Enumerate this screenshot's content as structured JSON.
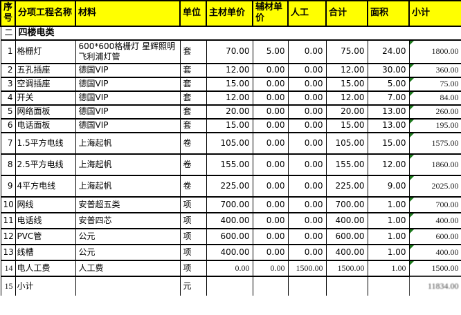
{
  "table": {
    "columns": [
      {
        "key": "no",
        "label": "序号"
      },
      {
        "key": "name",
        "label": "分项工程名称"
      },
      {
        "key": "material",
        "label": "材料"
      },
      {
        "key": "unit",
        "label": "单位"
      },
      {
        "key": "main",
        "label": "主材单价"
      },
      {
        "key": "aux",
        "label": "辅材单价"
      },
      {
        "key": "labor",
        "label": "人工"
      },
      {
        "key": "total",
        "label": "合计"
      },
      {
        "key": "area",
        "label": "面积"
      },
      {
        "key": "subtotal",
        "label": "小计"
      }
    ],
    "section": {
      "no": "二",
      "title": "四楼电类"
    },
    "rows": [
      {
        "no": "1",
        "name": "格栅灯",
        "material": "600*600格栅灯 星辉照明 飞利浦灯管",
        "unit": "套",
        "main": "70.00",
        "aux": "5.00",
        "labor": "0.00",
        "total": "75.00",
        "area": "24.00",
        "subtotal": "1800.00"
      },
      {
        "no": "2",
        "name": "五孔插座",
        "material": "德国VIP",
        "unit": "套",
        "main": "12.00",
        "aux": "0.00",
        "labor": "0.00",
        "total": "12.00",
        "area": "30.00",
        "subtotal": "360.00"
      },
      {
        "no": "3",
        "name": "空调插座",
        "material": "德国VIP",
        "unit": "套",
        "main": "15.00",
        "aux": "0.00",
        "labor": "0.00",
        "total": "15.00",
        "area": "5.00",
        "subtotal": "75.00"
      },
      {
        "no": "4",
        "name": "开关",
        "material": "德国VIP",
        "unit": "套",
        "main": "12.00",
        "aux": "0.00",
        "labor": "0.00",
        "total": "12.00",
        "area": "7.00",
        "subtotal": "84.00"
      },
      {
        "no": "5",
        "name": "网络面板",
        "material": "德国VIP",
        "unit": "套",
        "main": "20.00",
        "aux": "0.00",
        "labor": "0.00",
        "total": "20.00",
        "area": "13.00",
        "subtotal": "260.00"
      },
      {
        "no": "6",
        "name": "电话面板",
        "material": "德国VIP",
        "unit": "套",
        "main": "15.00",
        "aux": "0.00",
        "labor": "0.00",
        "total": "15.00",
        "area": "13.00",
        "subtotal": "195.00"
      },
      {
        "no": "7",
        "name": "1.5平方电线",
        "material": "上海起帆",
        "unit": "卷",
        "main": "105.00",
        "aux": "0.00",
        "labor": "0.00",
        "total": "105.00",
        "area": "15.00",
        "subtotal": "1575.00"
      },
      {
        "no": "8",
        "name": "2.5平方电线",
        "material": "上海起帆",
        "unit": "卷",
        "main": "155.00",
        "aux": "0.00",
        "labor": "0.00",
        "total": "155.00",
        "area": "12.00",
        "subtotal": "1860.00"
      },
      {
        "no": "9",
        "name": "4平方电线",
        "material": "上海起帆",
        "unit": "卷",
        "main": "225.00",
        "aux": "0.00",
        "labor": "0.00",
        "total": "225.00",
        "area": "9.00",
        "subtotal": "2025.00"
      },
      {
        "no": "10",
        "name": "网线",
        "material": "安普超五类",
        "unit": "项",
        "main": "700.00",
        "aux": "0.00",
        "labor": "0.00",
        "total": "700.00",
        "area": "1.00",
        "subtotal": "700.00"
      },
      {
        "no": "11",
        "name": "电话线",
        "material": "安普四芯",
        "unit": "项",
        "main": "400.00",
        "aux": "0.00",
        "labor": "0.00",
        "total": "400.00",
        "area": "1.00",
        "subtotal": "400.00"
      },
      {
        "no": "12",
        "name": "PVC管",
        "material": "公元",
        "unit": "项",
        "main": "600.00",
        "aux": "0.00",
        "labor": "0.00",
        "total": "600.00",
        "area": "1.00",
        "subtotal": "600.00"
      },
      {
        "no": "13",
        "name": "线槽",
        "material": "公元",
        "unit": "项",
        "main": "400.00",
        "aux": "0.00",
        "labor": "0.00",
        "total": "400.00",
        "area": "1.00",
        "subtotal": "400.00"
      },
      {
        "no": "14",
        "name": "电人工费",
        "material": "人工费",
        "unit": "项",
        "main": "0.00",
        "aux": "0.00",
        "labor": "1500.00",
        "total": "1500.00",
        "area": "1.00",
        "subtotal": "1500.00"
      }
    ],
    "footer": {
      "no": "15",
      "name": "小计",
      "material": "",
      "unit": "元",
      "main": "",
      "aux": "",
      "labor": "",
      "total": "",
      "area": "",
      "subtotal": "11834.00"
    }
  },
  "colors": {
    "header_bg": "#FFFF00",
    "grid": "#000000",
    "error_triangle": "#1E7B1E",
    "text": "#000000"
  }
}
